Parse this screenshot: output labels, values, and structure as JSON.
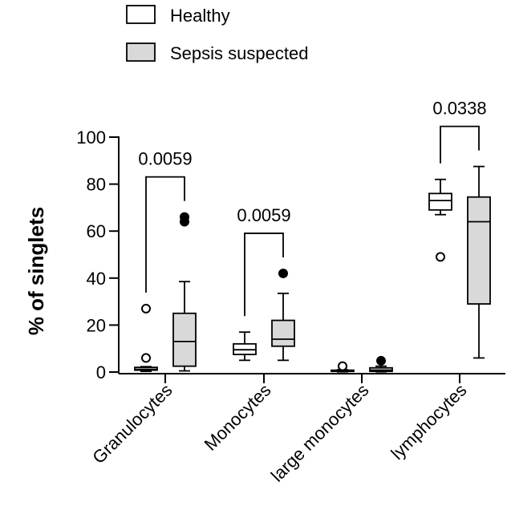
{
  "chart_data": {
    "type": "box",
    "ylabel": "% of singlets",
    "ylim": [
      0,
      110
    ],
    "yticks": [
      0,
      20,
      40,
      60,
      80,
      100
    ],
    "categories": [
      "Granulocytes",
      "Monocytes",
      "large monocytes",
      "lymphocytes"
    ],
    "legend": {
      "placement": "top-left",
      "entries": [
        "Healthy",
        "Sepsis suspected"
      ]
    },
    "colors": {
      "healthy_fill": "#ffffff",
      "sepsis_fill": "#d9d9d9",
      "stroke": "#000000"
    },
    "series": [
      {
        "name": "Healthy",
        "boxes": [
          {
            "whisker_low": 0.3,
            "q1": 0.8,
            "median": 1.2,
            "q3": 2.0,
            "whisker_high": 2.3,
            "outliers": [
              6,
              27
            ],
            "outlier_style": "open"
          },
          {
            "whisker_low": 5,
            "q1": 7.5,
            "median": 9.5,
            "q3": 12,
            "whisker_high": 17,
            "outliers": [],
            "outlier_style": "open"
          },
          {
            "whisker_low": 0.1,
            "q1": 0.3,
            "median": 0.5,
            "q3": 0.8,
            "whisker_high": 1.0,
            "outliers": [
              2.5
            ],
            "outlier_style": "open"
          },
          {
            "whisker_low": 67,
            "q1": 69,
            "median": 73,
            "q3": 76,
            "whisker_high": 82,
            "outliers": [
              49
            ],
            "outlier_style": "open"
          }
        ]
      },
      {
        "name": "Sepsis suspected",
        "boxes": [
          {
            "whisker_low": 0.5,
            "q1": 2.5,
            "median": 13,
            "q3": 25,
            "whisker_high": 38.5,
            "outliers": [
              64,
              66
            ],
            "outlier_style": "filled"
          },
          {
            "whisker_low": 5,
            "q1": 11,
            "median": 14,
            "q3": 22,
            "whisker_high": 33.5,
            "outliers": [
              42
            ],
            "outlier_style": "filled"
          },
          {
            "whisker_low": 0.1,
            "q1": 0.3,
            "median": 0.8,
            "q3": 1.8,
            "whisker_high": 2.5,
            "outliers": [
              4.8
            ],
            "outlier_style": "filled"
          },
          {
            "whisker_low": 6,
            "q1": 29,
            "median": 64,
            "q3": 74.5,
            "whisker_high": 87.5,
            "outliers": [],
            "outlier_style": "filled"
          }
        ]
      }
    ],
    "annotations": [
      {
        "category_index": 0,
        "text": "0.0059"
      },
      {
        "category_index": 1,
        "text": "0.0059"
      },
      {
        "category_index": 3,
        "text": "0.0338"
      }
    ]
  }
}
